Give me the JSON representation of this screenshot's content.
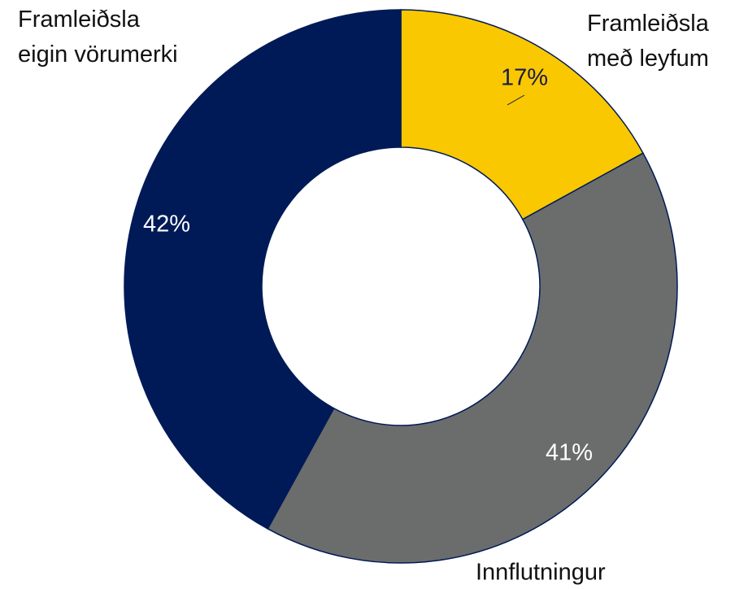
{
  "chart_data": {
    "type": "donut",
    "categories": [
      "Framleiðsla með leyfum",
      "Innflutningur",
      "Framleiðsla eigin vörumerki"
    ],
    "values": [
      17,
      41,
      42
    ],
    "value_labels": [
      "17%",
      "41%",
      "42%"
    ],
    "colors": [
      "#f9c800",
      "#6b6c6c",
      "#001a57"
    ]
  }
}
